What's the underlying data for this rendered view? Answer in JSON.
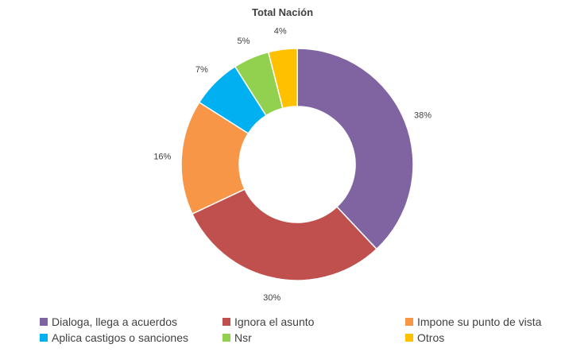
{
  "chart_data": {
    "type": "pie",
    "subtype": "donut",
    "title": "Total Nación",
    "categories": [
      "Dialoga, llega a acuerdos",
      "Ignora el asunto",
      "Impone su punto de vista",
      "Aplica castigos o sanciones",
      "Nsr",
      "Otros"
    ],
    "values": [
      38,
      30,
      16,
      7,
      5,
      4
    ],
    "value_labels": [
      "38%",
      "30%",
      "16%",
      "7%",
      "5%",
      "4%"
    ],
    "colors": [
      "#8064a2",
      "#c0504d",
      "#f79646",
      "#00b0f0",
      "#92d050",
      "#ffc000"
    ],
    "legend_position": "bottom"
  }
}
